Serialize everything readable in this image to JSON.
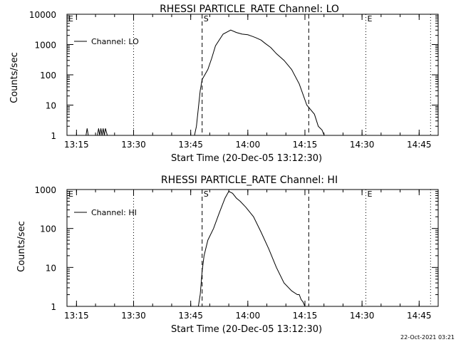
{
  "page": {
    "footer": "22-Oct-2021 03:21"
  },
  "chart_data": [
    {
      "type": "line",
      "title": "RHESSI PARTICLE_RATE Channel: LO",
      "xlabel": "Start Time (20-Dec-05 13:12:30)",
      "ylabel": "Counts/sec",
      "x_unit": "minutes after 13:12:30",
      "xlim": [
        0,
        97.5
      ],
      "ylim": [
        1,
        10000
      ],
      "yscale": "log",
      "xticks": [
        "13:15",
        "13:30",
        "13:45",
        "14:00",
        "14:15",
        "14:30",
        "14:45"
      ],
      "yticks": [
        "1",
        "10",
        "100",
        "1000",
        "10000"
      ],
      "legend": "top-left",
      "vlines": [
        {
          "label": "E",
          "time": "13:12:30",
          "style": "dotted"
        },
        {
          "label": "",
          "time": "13:30",
          "style": "dotted"
        },
        {
          "label": "S",
          "time": "13:48",
          "style": "dashed"
        },
        {
          "label": "",
          "time": "14:16",
          "style": "dashed"
        },
        {
          "label": "E",
          "time": "14:31",
          "style": "dotted"
        },
        {
          "label": "",
          "time": "14:48",
          "style": "dotted"
        }
      ],
      "series": [
        {
          "name": "Channel: LO",
          "x": [
            5,
            5.3,
            5.6,
            8,
            8.3,
            8.6,
            8.9,
            9.2,
            9.5,
            9.8,
            10.1,
            10.6,
            10.9,
            33.5,
            34,
            35,
            35.5,
            36,
            37,
            38,
            39,
            41,
            43,
            44.5,
            46,
            47.5,
            48.5,
            49.5,
            51,
            52,
            53.5,
            55,
            57,
            59,
            61,
            63,
            65,
            66,
            67,
            67.3,
            67.6,
            68
          ],
          "y": [
            1,
            1.7,
            1,
            1,
            1.7,
            1,
            1.7,
            1,
            1.7,
            1,
            1.7,
            1,
            1,
            1,
            2,
            30,
            70,
            90,
            150,
            350,
            900,
            2200,
            3000,
            2500,
            2200,
            2100,
            1900,
            1700,
            1400,
            1100,
            800,
            500,
            300,
            150,
            50,
            10,
            5,
            2,
            1.5,
            1.2,
            1,
            1
          ]
        }
      ]
    },
    {
      "type": "line",
      "title": "RHESSI PARTICLE_RATE Channel: HI",
      "xlabel": "Start Time (20-Dec-05 13:12:30)",
      "ylabel": "Counts/sec",
      "x_unit": "minutes after 13:12:30",
      "xlim": [
        0,
        97.5
      ],
      "ylim": [
        1,
        1000
      ],
      "yscale": "log",
      "xticks": [
        "13:15",
        "13:30",
        "13:45",
        "14:00",
        "14:15",
        "14:30",
        "14:45"
      ],
      "yticks": [
        "1",
        "10",
        "100",
        "1000"
      ],
      "legend": "top-left",
      "vlines": [
        {
          "label": "E",
          "time": "13:12:30",
          "style": "dotted"
        },
        {
          "label": "",
          "time": "13:30",
          "style": "dotted"
        },
        {
          "label": "S",
          "time": "13:48",
          "style": "dashed"
        },
        {
          "label": "",
          "time": "14:16",
          "style": "dashed"
        },
        {
          "label": "E",
          "time": "14:31",
          "style": "dotted"
        },
        {
          "label": "",
          "time": "14:48",
          "style": "dotted"
        }
      ],
      "series": [
        {
          "name": "Channel: HI",
          "x": [
            0,
            34.5,
            35,
            35.5,
            36,
            37,
            38.5,
            40,
            41.5,
            42.5,
            43.5,
            44.5,
            45.5,
            47,
            49,
            51,
            53,
            55,
            57,
            59,
            60.5,
            61,
            61.5,
            62,
            62.5,
            63
          ],
          "y": [
            1,
            1,
            2,
            8,
            20,
            50,
            100,
            250,
            600,
            900,
            800,
            600,
            500,
            350,
            200,
            80,
            30,
            10,
            4,
            2.5,
            2,
            2,
            1.5,
            1.3,
            1,
            1
          ]
        }
      ]
    }
  ]
}
